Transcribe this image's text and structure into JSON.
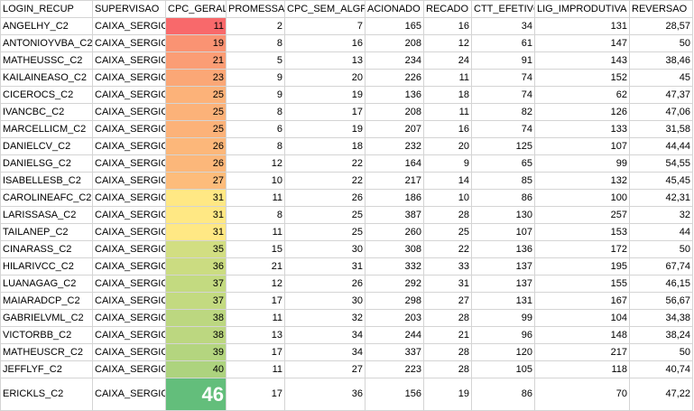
{
  "headers": [
    "LOGIN_RECUP",
    "SUPERVISAO",
    "CPC_GERAL",
    "PROMESSA",
    "CPC_SEM_ALGP",
    "ACIONADO",
    "RECADO",
    "CTT_EFETIVO",
    "LIG_IMPRODUTIVA",
    "REVERSAO"
  ],
  "rows": [
    {
      "login": "ANGELHY_C2",
      "supervisao": "CAIXA_SERGIO",
      "cpc_geral": "11",
      "promessa": "2",
      "cpc_sem_algp": "7",
      "acionado": "165",
      "recado": "16",
      "ctt_efetivo": "34",
      "lig_improdutiva": "131",
      "reversao": "28,57",
      "cpc_color": "#f8696b"
    },
    {
      "login": "ANTONIOYVBA_C2",
      "supervisao": "CAIXA_SERGIO",
      "cpc_geral": "19",
      "promessa": "8",
      "cpc_sem_algp": "16",
      "acionado": "208",
      "recado": "12",
      "ctt_efetivo": "61",
      "lig_improdutiva": "147",
      "reversao": "50",
      "cpc_color": "#fa9373"
    },
    {
      "login": "MATHEUSSC_C2",
      "supervisao": "CAIXA_SERGIO",
      "cpc_geral": "21",
      "promessa": "5",
      "cpc_sem_algp": "13",
      "acionado": "234",
      "recado": "24",
      "ctt_efetivo": "91",
      "lig_improdutiva": "143",
      "reversao": "38,46",
      "cpc_color": "#fb9d75"
    },
    {
      "login": "KAILAINEASO_C2",
      "supervisao": "CAIXA_SERGIO",
      "cpc_geral": "23",
      "promessa": "9",
      "cpc_sem_algp": "20",
      "acionado": "226",
      "recado": "11",
      "ctt_efetivo": "74",
      "lig_improdutiva": "152",
      "reversao": "45",
      "cpc_color": "#fba776"
    },
    {
      "login": "CICEROCS_C2",
      "supervisao": "CAIXA_SERGIO",
      "cpc_geral": "25",
      "promessa": "9",
      "cpc_sem_algp": "19",
      "acionado": "136",
      "recado": "18",
      "ctt_efetivo": "74",
      "lig_improdutiva": "62",
      "reversao": "47,37",
      "cpc_color": "#fcb279"
    },
    {
      "login": "IVANCBC_C2",
      "supervisao": "CAIXA_SERGIO",
      "cpc_geral": "25",
      "promessa": "8",
      "cpc_sem_algp": "17",
      "acionado": "208",
      "recado": "11",
      "ctt_efetivo": "82",
      "lig_improdutiva": "126",
      "reversao": "47,06",
      "cpc_color": "#fcb279"
    },
    {
      "login": "MARCELLICM_C2",
      "supervisao": "CAIXA_SERGIO",
      "cpc_geral": "25",
      "promessa": "6",
      "cpc_sem_algp": "19",
      "acionado": "207",
      "recado": "16",
      "ctt_efetivo": "74",
      "lig_improdutiva": "133",
      "reversao": "31,58",
      "cpc_color": "#fcb279"
    },
    {
      "login": "DANIELCV_C2",
      "supervisao": "CAIXA_SERGIO",
      "cpc_geral": "26",
      "promessa": "8",
      "cpc_sem_algp": "18",
      "acionado": "232",
      "recado": "20",
      "ctt_efetivo": "125",
      "lig_improdutiva": "107",
      "reversao": "44,44",
      "cpc_color": "#fcb77a"
    },
    {
      "login": "DANIELSG_C2",
      "supervisao": "CAIXA_SERGIO",
      "cpc_geral": "26",
      "promessa": "12",
      "cpc_sem_algp": "22",
      "acionado": "164",
      "recado": "9",
      "ctt_efetivo": "65",
      "lig_improdutiva": "99",
      "reversao": "54,55",
      "cpc_color": "#fcb77a"
    },
    {
      "login": "ISABELLESB_C2",
      "supervisao": "CAIXA_SERGIO",
      "cpc_geral": "27",
      "promessa": "10",
      "cpc_sem_algp": "22",
      "acionado": "217",
      "recado": "14",
      "ctt_efetivo": "85",
      "lig_improdutiva": "132",
      "reversao": "45,45",
      "cpc_color": "#fdbc7b"
    },
    {
      "login": "CAROLINEAFC_C2",
      "supervisao": "CAIXA_SERGIO",
      "cpc_geral": "31",
      "promessa": "11",
      "cpc_sem_algp": "26",
      "acionado": "186",
      "recado": "10",
      "ctt_efetivo": "86",
      "lig_improdutiva": "100",
      "reversao": "42,31",
      "cpc_color": "#ffe884"
    },
    {
      "login": "LARISSASA_C2",
      "supervisao": "CAIXA_SERGIO",
      "cpc_geral": "31",
      "promessa": "8",
      "cpc_sem_algp": "25",
      "acionado": "387",
      "recado": "28",
      "ctt_efetivo": "130",
      "lig_improdutiva": "257",
      "reversao": "32",
      "cpc_color": "#ffe884"
    },
    {
      "login": "TAILANEP_C2",
      "supervisao": "CAIXA_SERGIO",
      "cpc_geral": "31",
      "promessa": "11",
      "cpc_sem_algp": "25",
      "acionado": "260",
      "recado": "25",
      "ctt_efetivo": "107",
      "lig_improdutiva": "153",
      "reversao": "44",
      "cpc_color": "#ffe884"
    },
    {
      "login": "CINARASS_C2",
      "supervisao": "CAIXA_SERGIO",
      "cpc_geral": "35",
      "promessa": "15",
      "cpc_sem_algp": "30",
      "acionado": "308",
      "recado": "22",
      "ctt_efetivo": "136",
      "lig_improdutiva": "172",
      "reversao": "50",
      "cpc_color": "#d2de82"
    },
    {
      "login": "HILARIVCC_C2",
      "supervisao": "CAIXA_SERGIO",
      "cpc_geral": "36",
      "promessa": "21",
      "cpc_sem_algp": "31",
      "acionado": "332",
      "recado": "33",
      "ctt_efetivo": "137",
      "lig_improdutiva": "195",
      "reversao": "67,74",
      "cpc_color": "#cbdc81"
    },
    {
      "login": "LUANAGAG_C2",
      "supervisao": "CAIXA_SERGIO",
      "cpc_geral": "37",
      "promessa": "12",
      "cpc_sem_algp": "26",
      "acionado": "292",
      "recado": "31",
      "ctt_efetivo": "137",
      "lig_improdutiva": "155",
      "reversao": "46,15",
      "cpc_color": "#c3da80"
    },
    {
      "login": "MAIARADCP_C2",
      "supervisao": "CAIXA_SERGIO",
      "cpc_geral": "37",
      "promessa": "17",
      "cpc_sem_algp": "30",
      "acionado": "298",
      "recado": "27",
      "ctt_efetivo": "131",
      "lig_improdutiva": "167",
      "reversao": "56,67",
      "cpc_color": "#c3da80"
    },
    {
      "login": "GABRIELVML_C2",
      "supervisao": "CAIXA_SERGIO",
      "cpc_geral": "38",
      "promessa": "11",
      "cpc_sem_algp": "32",
      "acionado": "203",
      "recado": "28",
      "ctt_efetivo": "99",
      "lig_improdutiva": "104",
      "reversao": "34,38",
      "cpc_color": "#bcd780"
    },
    {
      "login": "VICTORBB_C2",
      "supervisao": "CAIXA_SERGIO",
      "cpc_geral": "38",
      "promessa": "13",
      "cpc_sem_algp": "34",
      "acionado": "244",
      "recado": "21",
      "ctt_efetivo": "96",
      "lig_improdutiva": "148",
      "reversao": "38,24",
      "cpc_color": "#bcd780"
    },
    {
      "login": "MATHEUSCR_C2",
      "supervisao": "CAIXA_SERGIO",
      "cpc_geral": "39",
      "promessa": "17",
      "cpc_sem_algp": "34",
      "acionado": "337",
      "recado": "28",
      "ctt_efetivo": "120",
      "lig_improdutiva": "217",
      "reversao": "50",
      "cpc_color": "#b4d57f"
    },
    {
      "login": "JEFFLYF_C2",
      "supervisao": "CAIXA_SERGIO",
      "cpc_geral": "40",
      "promessa": "11",
      "cpc_sem_algp": "27",
      "acionado": "223",
      "recado": "28",
      "ctt_efetivo": "105",
      "lig_improdutiva": "118",
      "reversao": "40,74",
      "cpc_color": "#add37e"
    },
    {
      "login": "ERICKLS_C2",
      "supervisao": "CAIXA_SERGIO",
      "cpc_geral": "46",
      "promessa": "17",
      "cpc_sem_algp": "36",
      "acionado": "156",
      "recado": "19",
      "ctt_efetivo": "86",
      "lig_improdutiva": "70",
      "reversao": "47,22",
      "cpc_color": "#63be7b"
    }
  ]
}
